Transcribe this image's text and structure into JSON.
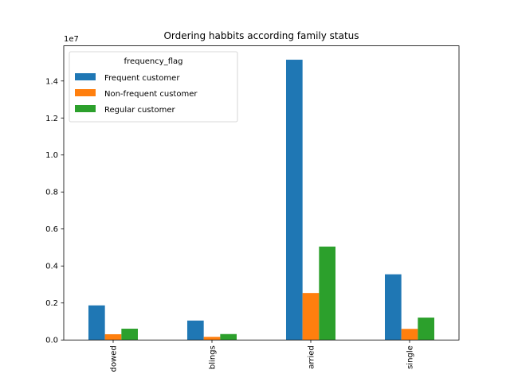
{
  "chart_data": {
    "type": "bar",
    "title": "Ordering habbits according family status",
    "xlabel": "",
    "ylabel": "",
    "y_scale_text": "1e7",
    "ylim": [
      0,
      15900000
    ],
    "yticks": [
      0.0,
      0.2,
      0.4,
      0.6,
      0.8,
      1.0,
      1.2,
      1.4
    ],
    "y_tick_multiplier": 10000000,
    "categories": [
      "widowed",
      "living with parents and siblings",
      "married",
      "single"
    ],
    "visible_category_labels": [
      "dowed",
      "blings",
      "arried",
      "single"
    ],
    "legend": {
      "title": "frequency_flag",
      "placement": "top-left"
    },
    "grid": false,
    "series": [
      {
        "name": "Frequent customer",
        "color": "#1f77b4",
        "values": [
          1870000,
          1050000,
          15150000,
          3550000
        ]
      },
      {
        "name": "Non-frequent customer",
        "color": "#ff7f0e",
        "values": [
          310000,
          170000,
          2540000,
          600000
        ]
      },
      {
        "name": "Regular customer",
        "color": "#2ca02c",
        "values": [
          610000,
          320000,
          5050000,
          1210000
        ]
      }
    ]
  }
}
